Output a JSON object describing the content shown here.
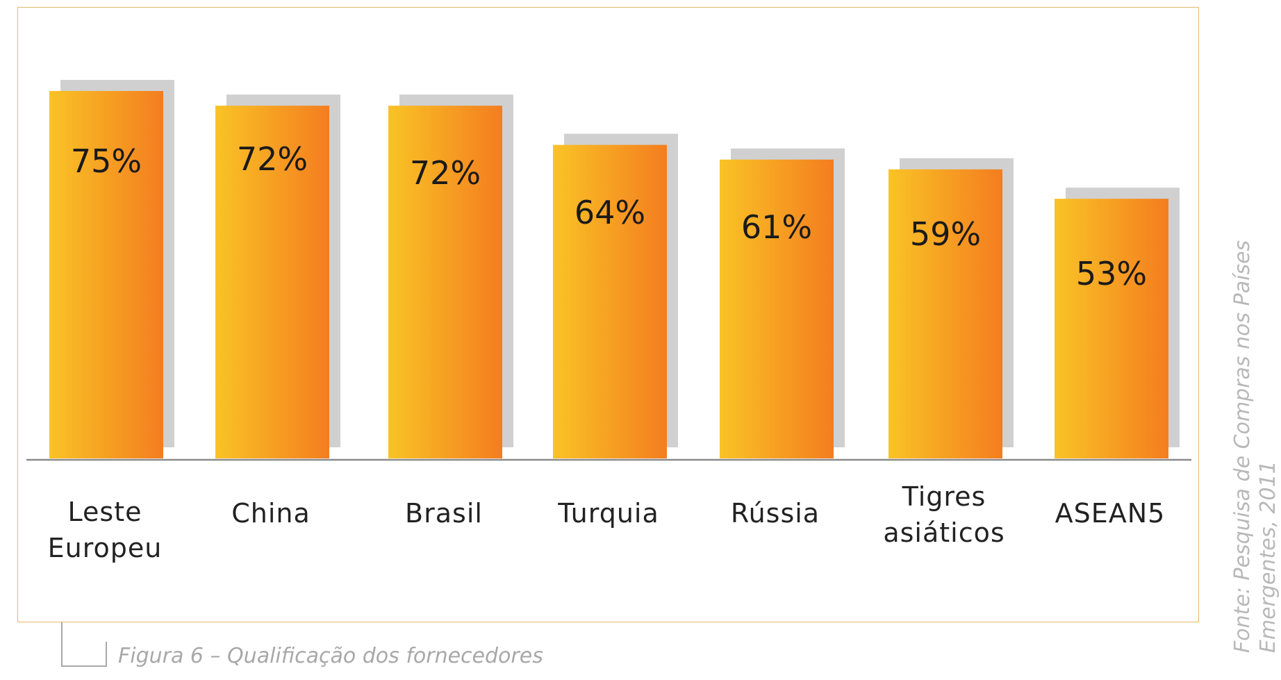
{
  "chart_data": {
    "type": "bar",
    "categories": [
      [
        "Leste",
        "Europeu"
      ],
      [
        "China"
      ],
      [
        "Brasil"
      ],
      [
        "Turquia"
      ],
      [
        "Rússia"
      ],
      [
        "Tigres",
        "asiáticos"
      ],
      [
        "ASEAN5"
      ]
    ],
    "values": [
      75,
      72,
      72,
      64,
      61,
      59,
      53
    ],
    "value_labels": [
      "75%",
      "72%",
      "72%",
      "64%",
      "61%",
      "59%",
      "53%"
    ],
    "unit": "%",
    "ylim": [
      0,
      80
    ],
    "grid": false,
    "colors": {
      "bar_start": "#f9c326",
      "bar_end": "#f47d1f",
      "shadow": "#d0d0d0",
      "axis": "#8a8a8a"
    }
  },
  "source_note": "Fonte: Pesquisa de Compras nos Países\nEmergentes, 2011",
  "caption": "Figura 6 – Qualificação dos fornecedores"
}
